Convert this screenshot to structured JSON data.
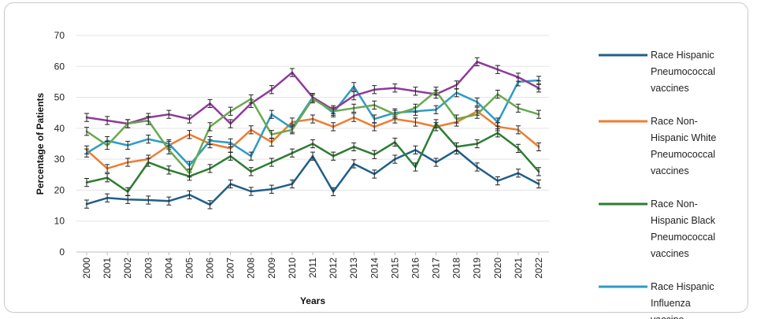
{
  "chart_data": {
    "type": "line",
    "title": "",
    "xlabel": "Years",
    "ylabel": "Percentage of Patients",
    "ylim": [
      0,
      70
    ],
    "yticks": [
      0,
      10,
      20,
      30,
      40,
      50,
      60,
      70
    ],
    "grid": true,
    "legend_position": "right",
    "categories": [
      "2000",
      "2001",
      "2002",
      "2003",
      "2004",
      "2005",
      "2006",
      "2007",
      "2008",
      "2009",
      "2010",
      "2011",
      "2012",
      "2013",
      "2014",
      "2015",
      "2016",
      "2017",
      "2018",
      "2019",
      "2020",
      "2021",
      "2022"
    ],
    "series": [
      {
        "name": "Race Hispanic Pneumococcal vaccines",
        "legend_lines": [
          "Race Hispanic",
          "Pneumococcal",
          "vaccines"
        ],
        "color": "#1f5f8b",
        "values": [
          15.5,
          17.5,
          17,
          16.8,
          16.5,
          18.5,
          15.3,
          22,
          19.6,
          20.3,
          22,
          31,
          19.5,
          28.5,
          25.2,
          30,
          33,
          29,
          33,
          27.5,
          23,
          25.5,
          22
        ]
      },
      {
        "name": "Race Non-Hispanic White Pneumococcal vaccines",
        "legend_lines": [
          "Race Non-",
          "Hispanic White",
          "Pneumococcal",
          "vaccines"
        ],
        "color": "#ed7d31",
        "values": [
          33,
          27,
          29,
          30,
          34.5,
          38,
          35,
          33.5,
          39.5,
          35.5,
          42,
          43,
          40.5,
          43.5,
          40.5,
          43,
          42,
          40.5,
          42,
          45.5,
          40.5,
          39.5,
          34
        ]
      },
      {
        "name": "Race Non-Hispanic Black Pneumococcal vaccines",
        "legend_lines": [
          "Race Non-",
          "Hispanic Black",
          "Pneumococcal",
          "vaccines"
        ],
        "color": "#2e7d32",
        "values": [
          22.5,
          24,
          19.5,
          29,
          26.5,
          24.5,
          27,
          31,
          26,
          29,
          32,
          35,
          31,
          34,
          31.5,
          35.5,
          27.5,
          41.5,
          34,
          35,
          38.5,
          33.5,
          26
        ]
      },
      {
        "name": "Race Hispanic Influenza vaccine",
        "legend_lines": [
          "Race Hispanic",
          "Influenza",
          "vaccine"
        ],
        "color": "#2e9bc6",
        "values": [
          32,
          36,
          34.5,
          36.5,
          35,
          28,
          36,
          35.3,
          31,
          44.5,
          40,
          50,
          45,
          53.5,
          43,
          45,
          45.5,
          46,
          51.5,
          48.5,
          42,
          55,
          55.5
        ]
      },
      {
        "name": "",
        "color": "#8e3a9a",
        "values": [
          43.5,
          42.5,
          41.5,
          43.5,
          44.5,
          43,
          48,
          41.5,
          48,
          52.5,
          58,
          50,
          46,
          50.5,
          52.5,
          53,
          52,
          51,
          54,
          61.5,
          59,
          56.5,
          53
        ]
      },
      {
        "name": "",
        "color": "#6aa84f",
        "values": [
          39,
          34.5,
          41.5,
          42.5,
          33,
          25.5,
          40.5,
          45.5,
          49.5,
          38,
          39.5,
          49.5,
          45.5,
          46.5,
          47.5,
          44.5,
          46.5,
          52,
          43,
          44.5,
          51,
          46.5,
          44.5
        ]
      },
      {
        "name": "",
        "color": "#1a1a1a",
        "values": [
          null,
          null,
          null,
          null,
          null,
          null,
          null,
          null,
          null,
          null,
          null,
          null,
          null,
          null,
          null,
          null,
          null,
          null,
          null,
          null,
          40.5,
          null,
          54
        ]
      }
    ]
  }
}
